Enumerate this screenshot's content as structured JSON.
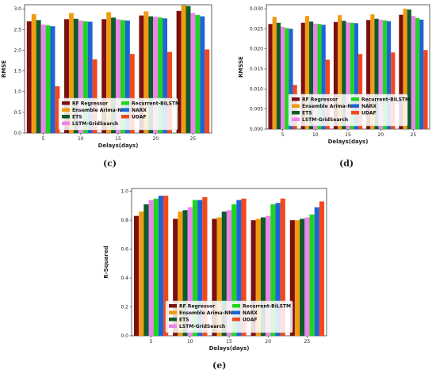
{
  "series_colors": [
    "#7b1010",
    "#f29a12",
    "#0d5c2a",
    "#ee82ee",
    "#1ed61e",
    "#1f63d9",
    "#f2481c"
  ],
  "chart_data": [
    {
      "id": "c",
      "caption": "(c)",
      "type": "bar",
      "ylabel": "RMSE",
      "xlabel": "Delays(days)",
      "categories": [
        "5",
        "10",
        "15",
        "20",
        "25"
      ],
      "ylim": [
        0,
        3.1
      ],
      "yticks": [
        "0.0",
        "0.5",
        "1.0",
        "1.5",
        "2.0",
        "2.5",
        "3.0"
      ],
      "ytick_values": [
        0,
        0.5,
        1.0,
        1.5,
        2.0,
        2.5,
        3.0
      ],
      "grid": false,
      "legend": "bottom-center",
      "series": [
        {
          "name": "RF Regressor",
          "values": [
            2.7,
            2.75,
            2.75,
            2.84,
            2.95
          ]
        },
        {
          "name": "Ensemble Arima-NN",
          "values": [
            2.87,
            2.9,
            2.92,
            2.94,
            3.09
          ]
        },
        {
          "name": "ETS",
          "values": [
            2.73,
            2.76,
            2.79,
            2.82,
            3.07
          ]
        },
        {
          "name": "LSTM-GridSearch",
          "values": [
            2.62,
            2.72,
            2.75,
            2.81,
            2.9
          ]
        },
        {
          "name": "Recurrent-BiLSTM",
          "values": [
            2.6,
            2.7,
            2.73,
            2.79,
            2.85
          ]
        },
        {
          "name": "NARX",
          "values": [
            2.58,
            2.69,
            2.72,
            2.77,
            2.82
          ]
        },
        {
          "name": "UDAF",
          "values": [
            1.13,
            1.78,
            1.91,
            1.96,
            2.02
          ]
        }
      ]
    },
    {
      "id": "d",
      "caption": "(d)",
      "type": "bar",
      "ylabel": "RMSSE",
      "xlabel": "Delays(days)",
      "categories": [
        "5",
        "10",
        "15",
        "20",
        "25"
      ],
      "ylim": [
        0,
        0.031
      ],
      "yticks": [
        "0.000",
        "0.005",
        "0.010",
        "0.015",
        "0.020",
        "0.025",
        "0.030"
      ],
      "ytick_values": [
        0,
        0.005,
        0.01,
        0.015,
        0.02,
        0.025,
        0.03
      ],
      "grid": false,
      "legend": "bottom-center",
      "series": [
        {
          "name": "RF Regressor",
          "values": [
            0.0262,
            0.0265,
            0.0267,
            0.0272,
            0.0285
          ]
        },
        {
          "name": "Ensemble Arima-NN",
          "values": [
            0.028,
            0.0282,
            0.0284,
            0.0286,
            0.03
          ]
        },
        {
          "name": "ETS",
          "values": [
            0.0265,
            0.0268,
            0.027,
            0.0275,
            0.0298
          ]
        },
        {
          "name": "LSTM-GridSearch",
          "values": [
            0.0255,
            0.0263,
            0.0266,
            0.0273,
            0.0282
          ]
        },
        {
          "name": "Recurrent-BiLSTM",
          "values": [
            0.0252,
            0.0262,
            0.0265,
            0.0271,
            0.0277
          ]
        },
        {
          "name": "NARX",
          "values": [
            0.025,
            0.026,
            0.0264,
            0.0269,
            0.0273
          ]
        },
        {
          "name": "UDAF",
          "values": [
            0.011,
            0.0173,
            0.0187,
            0.0191,
            0.0197
          ]
        }
      ]
    },
    {
      "id": "e",
      "caption": "(e)",
      "type": "bar",
      "ylabel": "R-Squared",
      "xlabel": "Delays(days)",
      "categories": [
        "5",
        "10",
        "15",
        "20",
        "25"
      ],
      "ylim": [
        0,
        1.02
      ],
      "yticks": [
        "0.0",
        "0.2",
        "0.4",
        "0.6",
        "0.8",
        "1.0"
      ],
      "ytick_values": [
        0,
        0.2,
        0.4,
        0.6,
        0.8,
        1.0
      ],
      "grid": false,
      "legend": "bottom-center",
      "series": [
        {
          "name": "RF Regressor",
          "values": [
            0.83,
            0.81,
            0.81,
            0.8,
            0.8
          ]
        },
        {
          "name": "Ensemble Arima-NN",
          "values": [
            0.86,
            0.86,
            0.82,
            0.81,
            0.8
          ]
        },
        {
          "name": "ETS",
          "values": [
            0.91,
            0.87,
            0.86,
            0.82,
            0.81
          ]
        },
        {
          "name": "LSTM-GridSearch",
          "values": [
            0.94,
            0.89,
            0.87,
            0.83,
            0.82
          ]
        },
        {
          "name": "Recurrent-BiLSTM",
          "values": [
            0.95,
            0.94,
            0.91,
            0.91,
            0.84
          ]
        },
        {
          "name": "NARX",
          "values": [
            0.97,
            0.94,
            0.94,
            0.92,
            0.89
          ]
        },
        {
          "name": "UDAF",
          "values": [
            0.97,
            0.96,
            0.95,
            0.95,
            0.93
          ]
        }
      ]
    }
  ]
}
